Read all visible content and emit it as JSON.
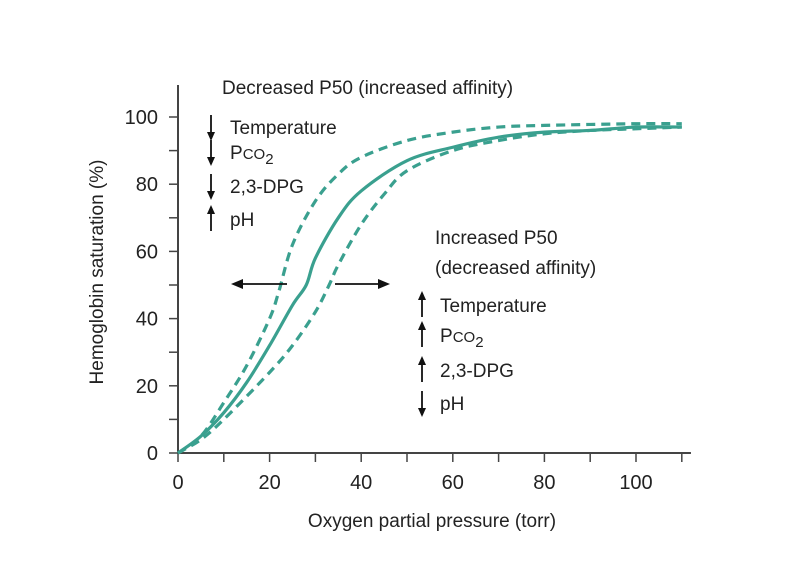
{
  "chart_data": {
    "type": "line",
    "xlabel": "Oxygen partial pressure (torr)",
    "ylabel": "Hemoglobin saturation (%)",
    "xlim": [
      0,
      112
    ],
    "ylim": [
      0,
      100
    ],
    "x_ticks": [
      0,
      20,
      40,
      60,
      80,
      100
    ],
    "y_ticks": [
      0,
      20,
      40,
      60,
      80,
      100
    ],
    "minor_tick_step": 10,
    "grid": false,
    "color": "#3aa08f",
    "series": [
      {
        "style": "solid",
        "x": [
          0,
          5,
          10,
          15,
          20,
          25,
          28,
          30,
          35,
          40,
          50,
          60,
          70,
          80,
          90,
          100,
          110
        ],
        "y": [
          0,
          5,
          12,
          21,
          32,
          44,
          50,
          58,
          70,
          78,
          87,
          91,
          94,
          95.5,
          96,
          97,
          97
        ]
      },
      {
        "style": "dashed",
        "x": [
          0,
          5,
          10,
          15,
          20,
          22,
          25,
          30,
          35,
          40,
          50,
          60,
          70,
          80,
          100,
          110
        ],
        "y": [
          0,
          5,
          15,
          26,
          40,
          48,
          62,
          75,
          83,
          88,
          93,
          95.5,
          97,
          97.5,
          98,
          98
        ]
      },
      {
        "style": "dashed",
        "x": [
          0,
          5,
          10,
          20,
          25,
          30,
          33,
          35,
          40,
          45,
          50,
          60,
          70,
          80,
          90,
          100,
          110
        ],
        "y": [
          0,
          4,
          10,
          24,
          32,
          42,
          50,
          56,
          68,
          77,
          84,
          90,
          93,
          95,
          96,
          96.5,
          97
        ]
      }
    ],
    "annotations": {
      "left": {
        "title": "Decreased P50 (increased affinity)",
        "items": [
          {
            "dir": "down",
            "text": "Temperature"
          },
          {
            "dir": "down",
            "text": "P",
            "sub": "CO",
            "sub2": "2"
          },
          {
            "dir": "down",
            "text": "2,3-DPG"
          },
          {
            "dir": "up",
            "text": "pH"
          }
        ]
      },
      "right": {
        "title_line1": "Increased P50",
        "title_line2": "(decreased affinity)",
        "items": [
          {
            "dir": "up",
            "text": "Temperature"
          },
          {
            "dir": "up",
            "text": "P",
            "sub": "CO",
            "sub2": "2"
          },
          {
            "dir": "up",
            "text": "2,3-DPG"
          },
          {
            "dir": "down",
            "text": "pH"
          }
        ]
      },
      "shift_arrows": [
        "left",
        "right"
      ]
    }
  }
}
